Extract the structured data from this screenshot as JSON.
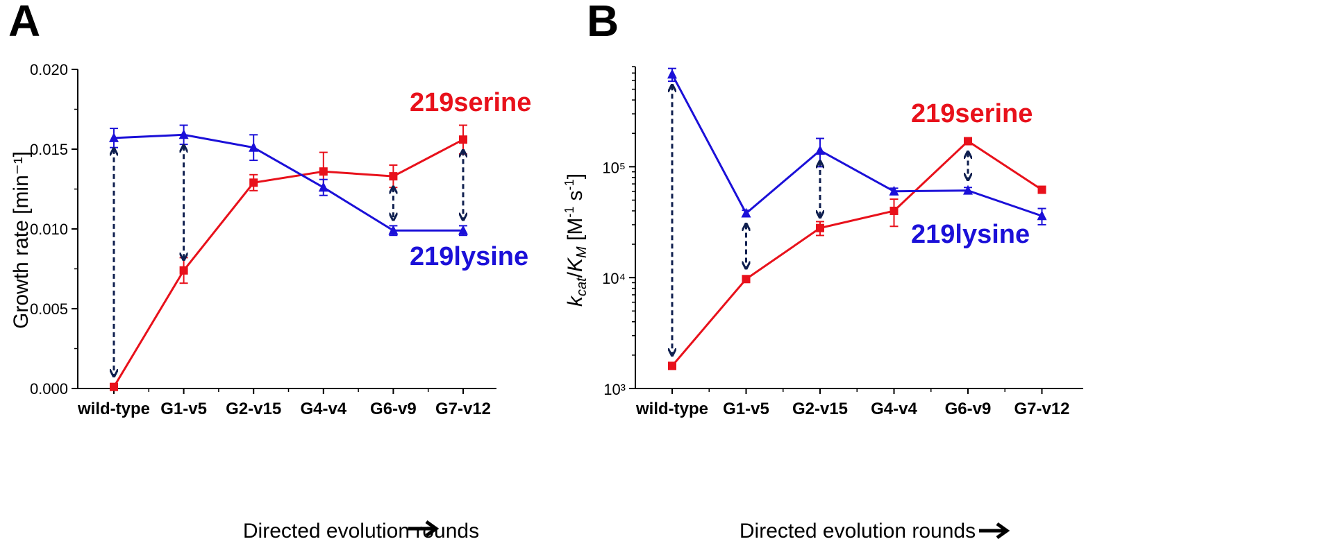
{
  "colors": {
    "serine": "#e8111b",
    "lysine": "#1b10d8",
    "arrow": "#0f1f4f",
    "axis": "#000000"
  },
  "arrow_icon": "right-arrow-icon",
  "chart_data": [
    {
      "panel": "A",
      "type": "line",
      "categories": [
        "wild-type",
        "G1-v5",
        "G2-v15",
        "G4-v4",
        "G6-v9",
        "G7-v12"
      ],
      "xlabel": "Directed evolution rounds",
      "ylabel": "Growth rate [min⁻¹]",
      "ylim": [
        0,
        0.02
      ],
      "yscale": "linear",
      "yticks": [
        "0.000",
        "0.005",
        "0.010",
        "0.015",
        "0.020"
      ],
      "grid": false,
      "series": [
        {
          "name": "219serine",
          "color": "#e8111b",
          "marker": "square",
          "values": [
            0.0001,
            0.0074,
            0.0129,
            0.0136,
            0.0133,
            0.0156
          ],
          "errors": [
            0.0001,
            0.0008,
            0.0005,
            0.0012,
            0.0007,
            0.0009
          ]
        },
        {
          "name": "219lysine",
          "color": "#1b10d8",
          "marker": "triangle",
          "values": [
            0.0157,
            0.0159,
            0.0151,
            0.0126,
            0.0099,
            0.0099
          ],
          "errors": [
            0.0006,
            0.0006,
            0.0008,
            0.0005,
            0.0003,
            0.0003
          ]
        }
      ],
      "arrows": [
        "wild-type",
        "G1-v5",
        "G6-v9",
        "G7-v12"
      ]
    },
    {
      "panel": "B",
      "type": "line",
      "categories": [
        "wild-type",
        "G1-v5",
        "G2-v15",
        "G4-v4",
        "G6-v9",
        "G7-v12"
      ],
      "xlabel": "Directed evolution rounds",
      "ylabel": "kcat/KM [M⁻¹ s⁻¹]",
      "ylim": [
        1000,
        800000
      ],
      "yscale": "log",
      "yticks": [
        "10³",
        "10⁴",
        "10⁵"
      ],
      "grid": false,
      "series": [
        {
          "name": "219serine",
          "color": "#e8111b",
          "marker": "square",
          "values": [
            1600,
            9700,
            28000,
            40000,
            170000,
            62000
          ],
          "errors": [
            100,
            400,
            4000,
            11000,
            8000,
            4000
          ]
        },
        {
          "name": "219lysine",
          "color": "#1b10d8",
          "marker": "triangle",
          "values": [
            680000,
            38000,
            140000,
            60000,
            61000,
            36000
          ],
          "errors": [
            90000,
            2500,
            40000,
            4000,
            4000,
            6000
          ]
        }
      ],
      "arrows": [
        "wild-type",
        "G1-v5",
        "G2-v15",
        "G6-v9"
      ]
    }
  ]
}
